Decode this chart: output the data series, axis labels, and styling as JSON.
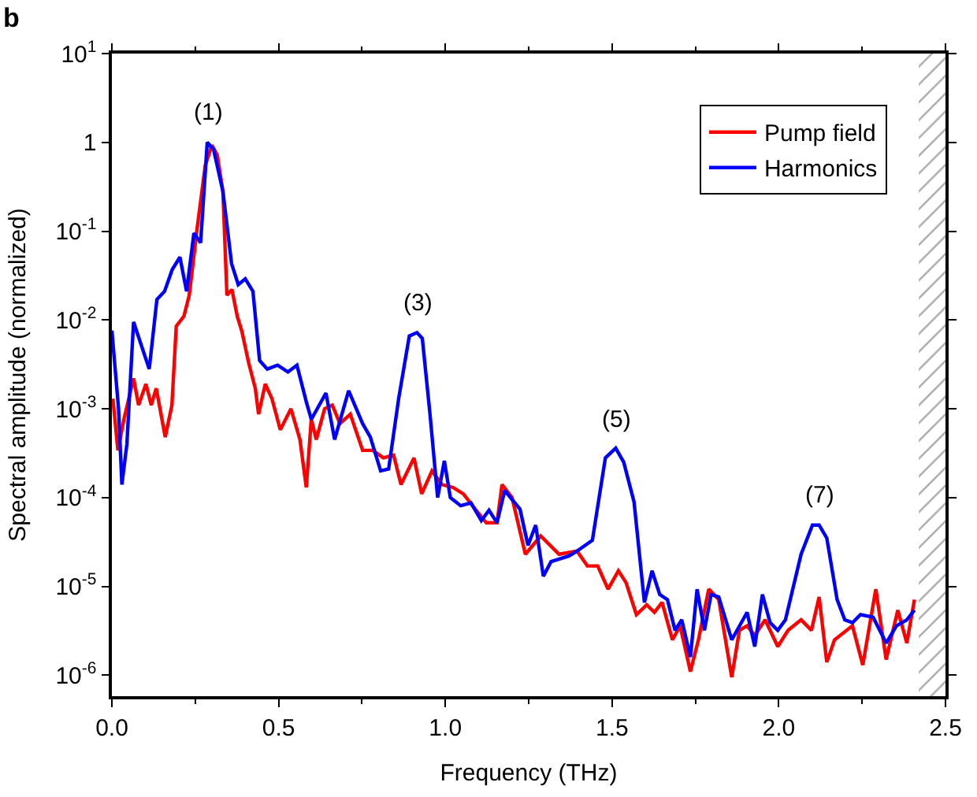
{
  "chart_data": {
    "type": "line",
    "xlabel": "Frequency (THz)",
    "ylabel": "Spectral amplitude (normalized)",
    "series": [
      {
        "name": "Pump field",
        "color": "#ff0000",
        "x": [
          0.003,
          0.018,
          0.036,
          0.065,
          0.08,
          0.102,
          0.118,
          0.133,
          0.16,
          0.18,
          0.193,
          0.216,
          0.232,
          0.256,
          0.28,
          0.3,
          0.316,
          0.333,
          0.345,
          0.36,
          0.376,
          0.39,
          0.41,
          0.43,
          0.44,
          0.46,
          0.48,
          0.505,
          0.537,
          0.564,
          0.583,
          0.598,
          0.613,
          0.638,
          0.661,
          0.684,
          0.715,
          0.752,
          0.783,
          0.814,
          0.845,
          0.867,
          0.906,
          0.929,
          0.96,
          0.99,
          1.023,
          1.054,
          1.085,
          1.123,
          1.155,
          1.17,
          1.2,
          1.24,
          1.286,
          1.341,
          1.395,
          1.426,
          1.457,
          1.488,
          1.519,
          1.542,
          1.573,
          1.604,
          1.627,
          1.65,
          1.681,
          1.704,
          1.735,
          1.759,
          1.79,
          1.82,
          1.859,
          1.882,
          1.905,
          1.928,
          1.959,
          1.997,
          2.028,
          2.067,
          2.098,
          2.121,
          2.144,
          2.167,
          2.221,
          2.252,
          2.291,
          2.322,
          2.357,
          2.384,
          2.407
        ],
        "values": [
          0.0013,
          0.00034,
          0.00076,
          0.0022,
          0.0011,
          0.0019,
          0.0011,
          0.0017,
          0.00048,
          0.0011,
          0.0085,
          0.011,
          0.019,
          0.11,
          0.55,
          0.93,
          0.72,
          0.28,
          0.019,
          0.022,
          0.011,
          0.0074,
          0.0033,
          0.0017,
          0.00087,
          0.0019,
          0.0013,
          0.00058,
          0.001,
          0.00045,
          0.00013,
          0.00076,
          0.00045,
          0.001,
          0.0011,
          0.00068,
          0.00087,
          0.00034,
          0.00034,
          0.00028,
          0.0003,
          0.00014,
          0.00028,
          0.00011,
          0.0002,
          0.00014,
          0.00013,
          0.00011,
          7.8e-05,
          5.2e-05,
          5.2e-05,
          0.00014,
          0.0001,
          2.3e-05,
          3.7e-05,
          2.3e-05,
          2.5e-05,
          1.7e-05,
          1.7e-05,
          9.3e-06,
          1.5e-05,
          1.1e-05,
          4.8e-06,
          6.2e-06,
          5.1e-06,
          6.6e-06,
          2.5e-06,
          3.6e-06,
          1.1e-06,
          2.5e-06,
          9.3e-06,
          7.1e-06,
          9.5e-07,
          3.2e-06,
          3.6e-06,
          2.8e-06,
          4.2e-06,
          2.1e-06,
          3.2e-06,
          4.2e-06,
          3.2e-06,
          7.6e-06,
          1.4e-06,
          2.5e-06,
          3.6e-06,
          1.3e-06,
          9.3e-06,
          1.5e-06,
          5.4e-06,
          2.3e-06,
          7.1e-06
        ]
      },
      {
        "name": "Harmonics",
        "color": "#0000ff",
        "x": [
          0.0,
          0.02,
          0.03,
          0.045,
          0.065,
          0.112,
          0.135,
          0.158,
          0.181,
          0.204,
          0.224,
          0.246,
          0.266,
          0.286,
          0.305,
          0.333,
          0.359,
          0.379,
          0.4,
          0.423,
          0.443,
          0.466,
          0.497,
          0.528,
          0.555,
          0.583,
          0.598,
          0.642,
          0.668,
          0.71,
          0.752,
          0.775,
          0.806,
          0.83,
          0.86,
          0.892,
          0.915,
          0.931,
          0.954,
          0.977,
          0.997,
          1.015,
          1.046,
          1.077,
          1.108,
          1.131,
          1.155,
          1.178,
          1.224,
          1.248,
          1.271,
          1.294,
          1.317,
          1.371,
          1.395,
          1.441,
          1.48,
          1.511,
          1.535,
          1.566,
          1.597,
          1.62,
          1.643,
          1.666,
          1.689,
          1.709,
          1.735,
          1.755,
          1.777,
          1.797,
          1.82,
          1.859,
          1.905,
          1.928,
          1.951,
          1.974,
          1.997,
          2.02,
          2.067,
          2.101,
          2.121,
          2.144,
          2.175,
          2.198,
          2.221,
          2.245,
          2.283,
          2.322,
          2.353,
          2.384,
          2.407
        ],
        "values": [
          0.0076,
          0.001,
          0.00014,
          0.0004,
          0.0095,
          0.0028,
          0.017,
          0.021,
          0.037,
          0.051,
          0.021,
          0.095,
          0.074,
          1.0,
          0.83,
          0.28,
          0.043,
          0.025,
          0.029,
          0.021,
          0.0035,
          0.0028,
          0.0031,
          0.0026,
          0.0031,
          0.0012,
          0.00076,
          0.0015,
          0.00045,
          0.0016,
          0.00068,
          0.00048,
          0.0002,
          0.00021,
          0.0013,
          0.0066,
          0.0072,
          0.0062,
          0.00087,
          0.0001,
          0.00026,
          0.0001,
          8.1e-05,
          8.7e-05,
          5.5e-05,
          7.2e-05,
          5.2e-05,
          0.00012,
          7.4e-05,
          2.9e-05,
          4.9e-05,
          1.3e-05,
          1.9e-05,
          2.2e-05,
          2.5e-05,
          3.3e-05,
          0.00028,
          0.00036,
          0.00025,
          8.9e-05,
          6.6e-06,
          1.5e-05,
          8.1e-06,
          7.1e-06,
          3.2e-06,
          4.2e-06,
          1.6e-06,
          9.3e-06,
          3.2e-06,
          8.1e-06,
          7.6e-06,
          2.5e-06,
          5.1e-06,
          2.1e-06,
          8.1e-06,
          3.9e-06,
          3.2e-06,
          4.2e-06,
          2.3e-05,
          4.9e-05,
          4.9e-05,
          3.5e-05,
          7.1e-06,
          4.2e-06,
          3.9e-06,
          4.8e-06,
          4.5e-06,
          2.3e-06,
          3.6e-06,
          4.2e-06,
          5.4e-06
        ]
      }
    ],
    "log": "y",
    "xlim": [
      0,
      2.5
    ],
    "xticks": [
      {
        "value": 0,
        "label": "0.0"
      },
      0.5,
      {
        "value": 1,
        "label": "1.0"
      },
      1.5,
      {
        "value": 2,
        "label": "2.0"
      },
      2.5
    ],
    "ylim": [
      5.8e-07,
      10
    ],
    "yticks": [
      {
        "value": 1e-06,
        "label": "10$^{-6}$"
      },
      {
        "value": 1e-05,
        "label": "10$^{-5}$"
      },
      {
        "value": 0.0001,
        "label": "10$^{-4}$"
      },
      {
        "value": 0.001,
        "label": "10$^{-3}$"
      },
      {
        "value": 0.01,
        "label": "10$^{-2}$"
      },
      {
        "value": 0.1,
        "label": "10$^{-1}$"
      },
      1,
      {
        "value": 10,
        "label": "10$^{1}$"
      }
    ],
    "bands": [
      {
        "axis": "x",
        "from": 2.42,
        "to": 2.5,
        "color": "#555555"
      }
    ],
    "annotations": [
      "b",
      {
        "text": "(1)",
        "x": 0.286,
        "y": 1.0
      },
      {
        "text": "(3)",
        "x": 0.915,
        "y": 0.0072
      },
      {
        "text": "(5)",
        "x": 1.511,
        "y": 0.00036
      },
      {
        "text": "(7)",
        "x": 2.121,
        "y": 4.9e-05
      }
    ],
    "legend": "top right",
    "marker": "none",
    "line_style": "solid"
  }
}
